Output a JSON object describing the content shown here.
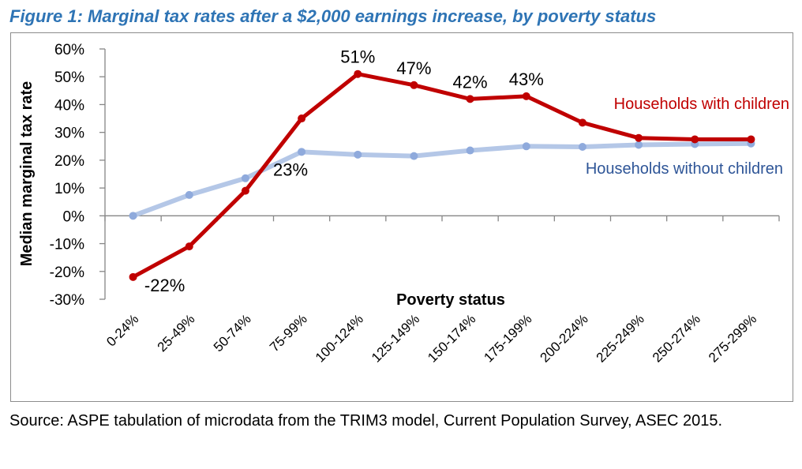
{
  "figure_title": "Figure 1: Marginal tax rates after a $2,000 earnings increase, by poverty status",
  "source_note": "Source: ASPE tabulation of microdata from the TRIM3 model, Current Population Survey, ASEC 2015.",
  "colors": {
    "title": "#2e74b5",
    "with_children": "#c00000",
    "without_children": "#b4c7e7",
    "without_children_label": "#2e5597"
  },
  "chart_data": {
    "type": "line",
    "xlabel": "Poverty status",
    "ylabel": "Median marginal tax rate",
    "ylim": [
      -30,
      60
    ],
    "y_ticks": [
      -30,
      -20,
      -10,
      0,
      10,
      20,
      30,
      40,
      50,
      60
    ],
    "y_tick_labels": [
      "-30%",
      "-20%",
      "-10%",
      "0%",
      "10%",
      "20%",
      "30%",
      "40%",
      "50%",
      "60%"
    ],
    "grid": false,
    "categories": [
      "0-24%",
      "25-49%",
      "50-74%",
      "75-99%",
      "100-124%",
      "125-149%",
      "150-174%",
      "175-199%",
      "200-224%",
      "225-249%",
      "250-274%",
      "275-299%"
    ],
    "series": [
      {
        "name": "Households with children",
        "color": "#c00000",
        "values": [
          -22,
          -11,
          9,
          35,
          51,
          47,
          42,
          43,
          33.5,
          28,
          27.5,
          27.5
        ]
      },
      {
        "name": "Households without children",
        "color": "#b4c7e7",
        "values": [
          0,
          7.5,
          13.5,
          23,
          22,
          21.5,
          23.5,
          25,
          24.8,
          25.5,
          25.8,
          26
        ]
      }
    ],
    "annotations": [
      {
        "text": "51%",
        "series": 0,
        "index": 4
      },
      {
        "text": "47%",
        "series": 0,
        "index": 5
      },
      {
        "text": "42%",
        "series": 0,
        "index": 6
      },
      {
        "text": "43%",
        "series": 0,
        "index": 7
      },
      {
        "text": "-22%",
        "series": 0,
        "index": 0
      },
      {
        "text": "23%",
        "series": 1,
        "index": 3
      }
    ]
  }
}
